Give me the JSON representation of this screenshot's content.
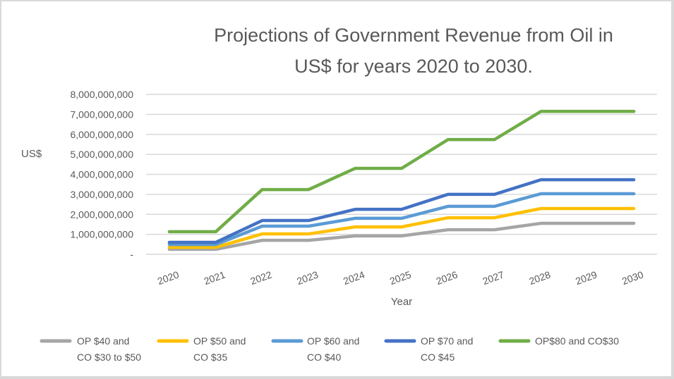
{
  "chart_data": {
    "type": "line",
    "title_lines": [
      "Projections of Government Revenue from Oil in",
      "US$ for years 2020 to 2030."
    ],
    "xlabel": "Year",
    "ylabel": "US$",
    "ylim": [
      0,
      8000000000
    ],
    "y_ticks": [
      0,
      1000000000,
      2000000000,
      3000000000,
      4000000000,
      5000000000,
      6000000000,
      7000000000,
      8000000000
    ],
    "y_tick_labels": [
      "-",
      "1,000,000,000",
      "2,000,000,000",
      "3,000,000,000",
      "4,000,000,000",
      "5,000,000,000",
      "6,000,000,000",
      "7,000,000,000",
      "8,000,000,000"
    ],
    "grid": true,
    "legend_position": "bottom",
    "categories": [
      "2020",
      "2021",
      "2022",
      "2023",
      "2024",
      "2025",
      "2026",
      "2027",
      "2028",
      "2029",
      "2030"
    ],
    "series": [
      {
        "name": "OP $40 and CO $30 to $50",
        "legend_lines": [
          "OP $40 and",
          "CO $30 to $50"
        ],
        "color": "#a5a5a5",
        "values": [
          250000000,
          250000000,
          700000000,
          700000000,
          920000000,
          920000000,
          1230000000,
          1230000000,
          1550000000,
          1550000000,
          1550000000
        ]
      },
      {
        "name": "OP $50 and CO $35",
        "legend_lines": [
          "OP $50 and",
          "CO $35"
        ],
        "color": "#ffc000",
        "values": [
          350000000,
          350000000,
          1020000000,
          1020000000,
          1370000000,
          1370000000,
          1830000000,
          1830000000,
          2290000000,
          2290000000,
          2290000000
        ]
      },
      {
        "name": "OP $60 and CO $40",
        "legend_lines": [
          "OP $60 and",
          "CO $40"
        ],
        "color": "#5b9bd5",
        "values": [
          490000000,
          490000000,
          1410000000,
          1410000000,
          1800000000,
          1800000000,
          2400000000,
          2400000000,
          3030000000,
          3030000000,
          3030000000
        ]
      },
      {
        "name": "OP $70 and CO $45",
        "legend_lines": [
          "OP $70 and",
          "CO $45"
        ],
        "color": "#4472c4",
        "values": [
          600000000,
          600000000,
          1690000000,
          1690000000,
          2250000000,
          2250000000,
          3000000000,
          3000000000,
          3730000000,
          3730000000,
          3730000000
        ]
      },
      {
        "name": "OP$80 and CO$30",
        "legend_lines": [
          "OP$80 and CO$30"
        ],
        "color": "#70ad47",
        "values": [
          1130000000,
          1130000000,
          3240000000,
          3240000000,
          4300000000,
          4300000000,
          5740000000,
          5740000000,
          7150000000,
          7150000000,
          7150000000
        ]
      }
    ]
  }
}
